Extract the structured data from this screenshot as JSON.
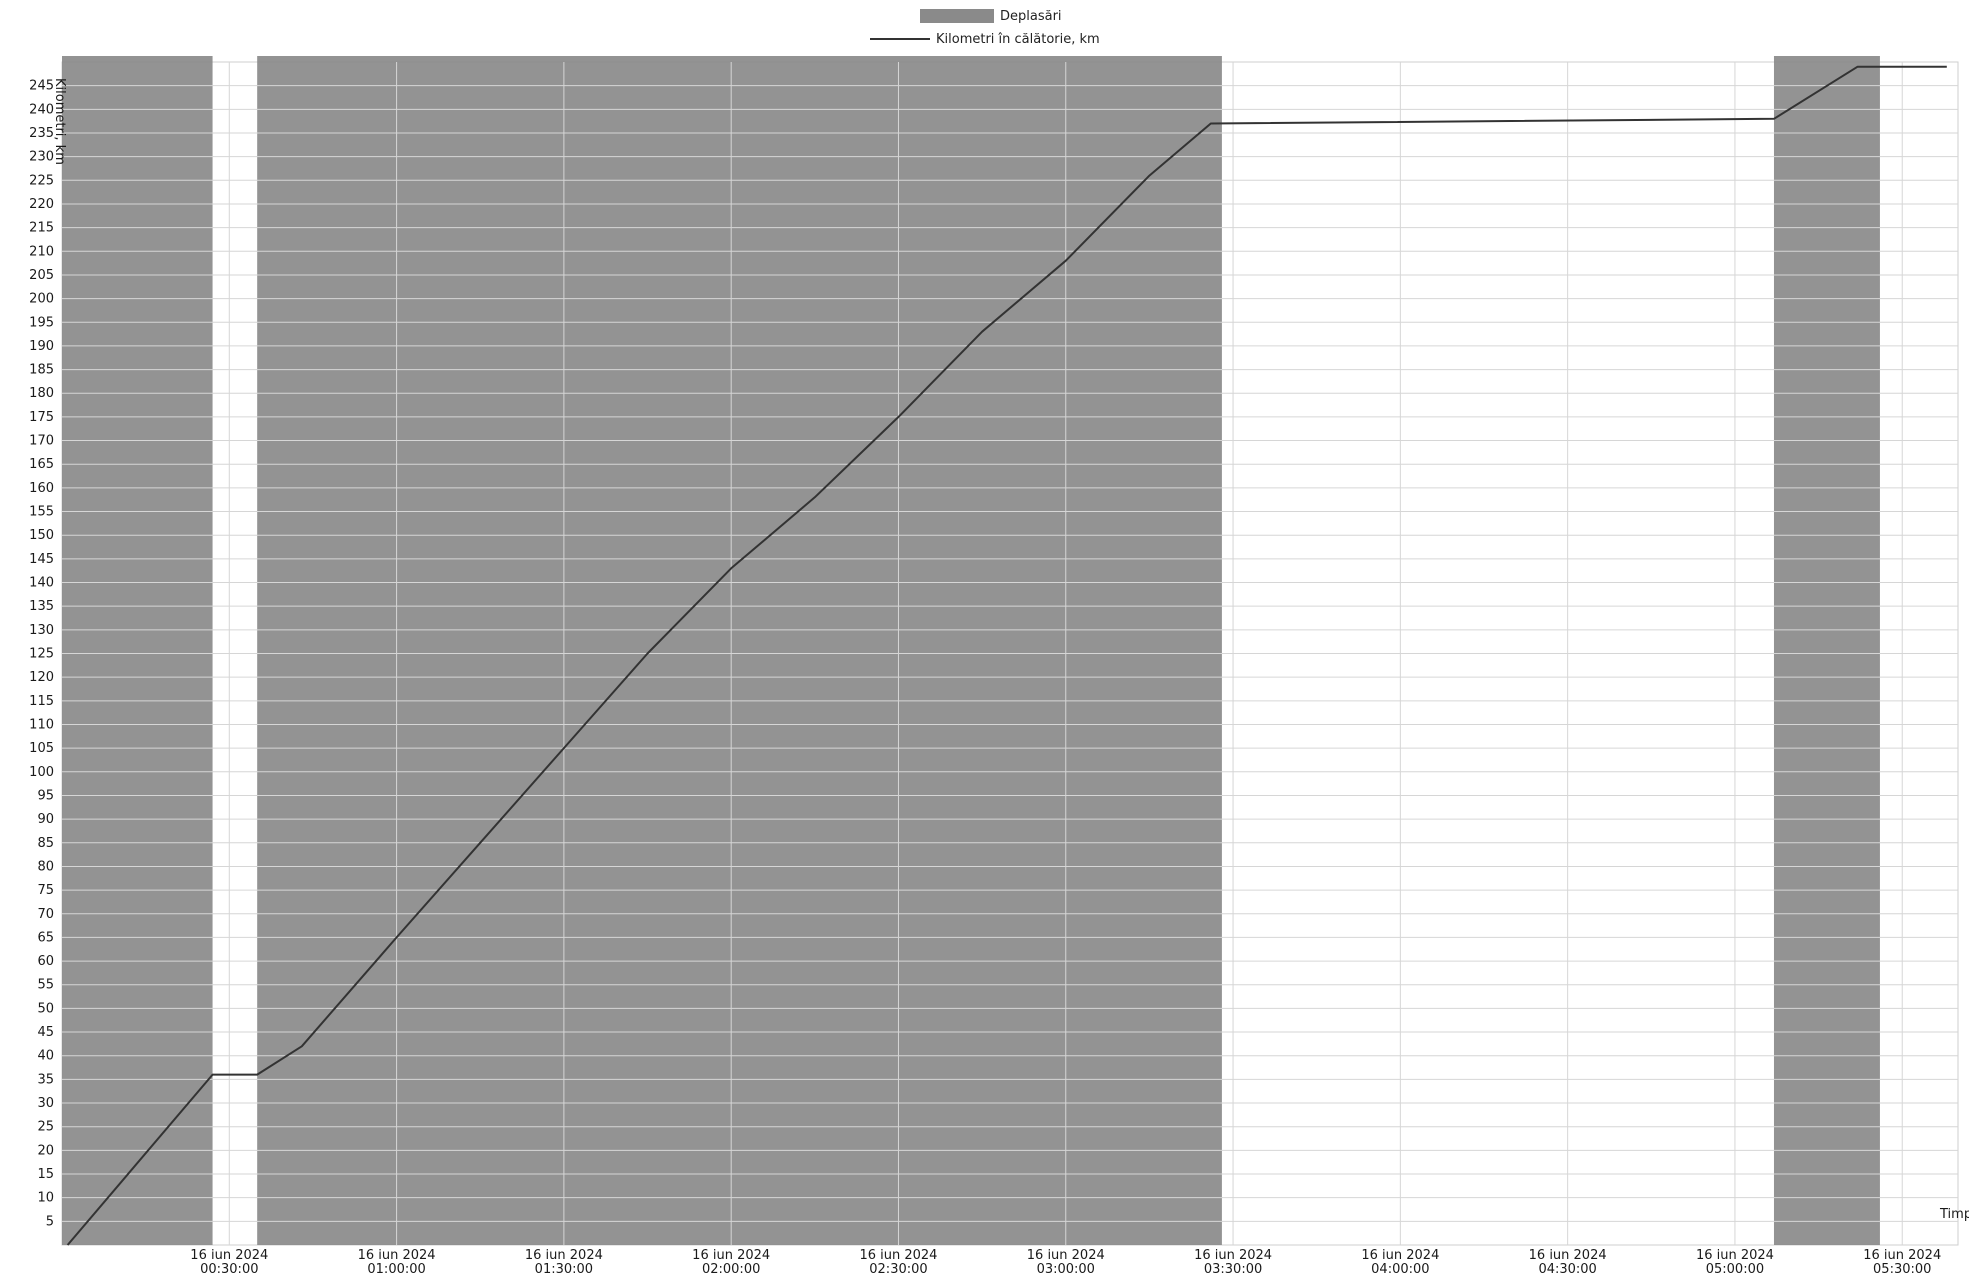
{
  "legend": {
    "trips_label": "Deplasări",
    "distance_label": "Kilometri în călătorie, km"
  },
  "chart_data": {
    "type": "line",
    "title": "",
    "xlabel": "Timp",
    "ylabel": "Kilometri, km",
    "x_range": [
      "2024-06-16T00:00:00",
      "2024-06-16T05:40:00"
    ],
    "ylim": [
      0,
      250
    ],
    "y_ticks": [
      5,
      10,
      15,
      20,
      25,
      30,
      35,
      40,
      45,
      50,
      55,
      60,
      65,
      70,
      75,
      80,
      85,
      90,
      95,
      100,
      105,
      110,
      115,
      120,
      125,
      130,
      135,
      140,
      145,
      150,
      155,
      160,
      165,
      170,
      175,
      180,
      185,
      190,
      195,
      200,
      205,
      210,
      215,
      220,
      225,
      230,
      235,
      240,
      245
    ],
    "x_ticks": [
      {
        "time": "2024-06-16T00:30:00",
        "date": "16 iun 2024",
        "clock": "00:30:00"
      },
      {
        "time": "2024-06-16T01:00:00",
        "date": "16 iun 2024",
        "clock": "01:00:00"
      },
      {
        "time": "2024-06-16T01:30:00",
        "date": "16 iun 2024",
        "clock": "01:30:00"
      },
      {
        "time": "2024-06-16T02:00:00",
        "date": "16 iun 2024",
        "clock": "02:00:00"
      },
      {
        "time": "2024-06-16T02:30:00",
        "date": "16 iun 2024",
        "clock": "02:30:00"
      },
      {
        "time": "2024-06-16T03:00:00",
        "date": "16 iun 2024",
        "clock": "03:00:00"
      },
      {
        "time": "2024-06-16T03:30:00",
        "date": "16 iun 2024",
        "clock": "03:30:00"
      },
      {
        "time": "2024-06-16T04:00:00",
        "date": "16 iun 2024",
        "clock": "04:00:00"
      },
      {
        "time": "2024-06-16T04:30:00",
        "date": "16 iun 2024",
        "clock": "04:30:00"
      },
      {
        "time": "2024-06-16T05:00:00",
        "date": "16 iun 2024",
        "clock": "05:00:00"
      },
      {
        "time": "2024-06-16T05:30:00",
        "date": "16 iun 2024",
        "clock": "05:30:00"
      }
    ],
    "grid": true,
    "legend_position": "top-center",
    "colors": {
      "trips_fill": "#8a8a8a",
      "line": "#333333",
      "grid_light": "#d6d6d6",
      "grid_on_band": "#b3b3b3"
    },
    "series": [
      {
        "name": "Deplasări",
        "kind": "band",
        "intervals": [
          [
            "2024-06-16T00:00:00",
            "2024-06-16T00:27:00"
          ],
          [
            "2024-06-16T00:35:00",
            "2024-06-16T03:28:00"
          ],
          [
            "2024-06-16T05:07:00",
            "2024-06-16T05:26:00"
          ]
        ]
      },
      {
        "name": "Kilometri în călătorie, km",
        "kind": "line",
        "points": [
          [
            "2024-06-16T00:01:00",
            0
          ],
          [
            "2024-06-16T00:27:00",
            36
          ],
          [
            "2024-06-16T00:35:00",
            36
          ],
          [
            "2024-06-16T00:43:00",
            42
          ],
          [
            "2024-06-16T01:00:00",
            65
          ],
          [
            "2024-06-16T01:15:00",
            85
          ],
          [
            "2024-06-16T01:30:00",
            105
          ],
          [
            "2024-06-16T01:45:00",
            125
          ],
          [
            "2024-06-16T02:00:00",
            143
          ],
          [
            "2024-06-16T02:15:00",
            158
          ],
          [
            "2024-06-16T02:30:00",
            175
          ],
          [
            "2024-06-16T02:45:00",
            193
          ],
          [
            "2024-06-16T03:00:00",
            208
          ],
          [
            "2024-06-16T03:15:00",
            226
          ],
          [
            "2024-06-16T03:26:00",
            237
          ],
          [
            "2024-06-16T05:07:00",
            238
          ],
          [
            "2024-06-16T05:22:00",
            249
          ],
          [
            "2024-06-16T05:38:00",
            249
          ]
        ]
      }
    ]
  }
}
